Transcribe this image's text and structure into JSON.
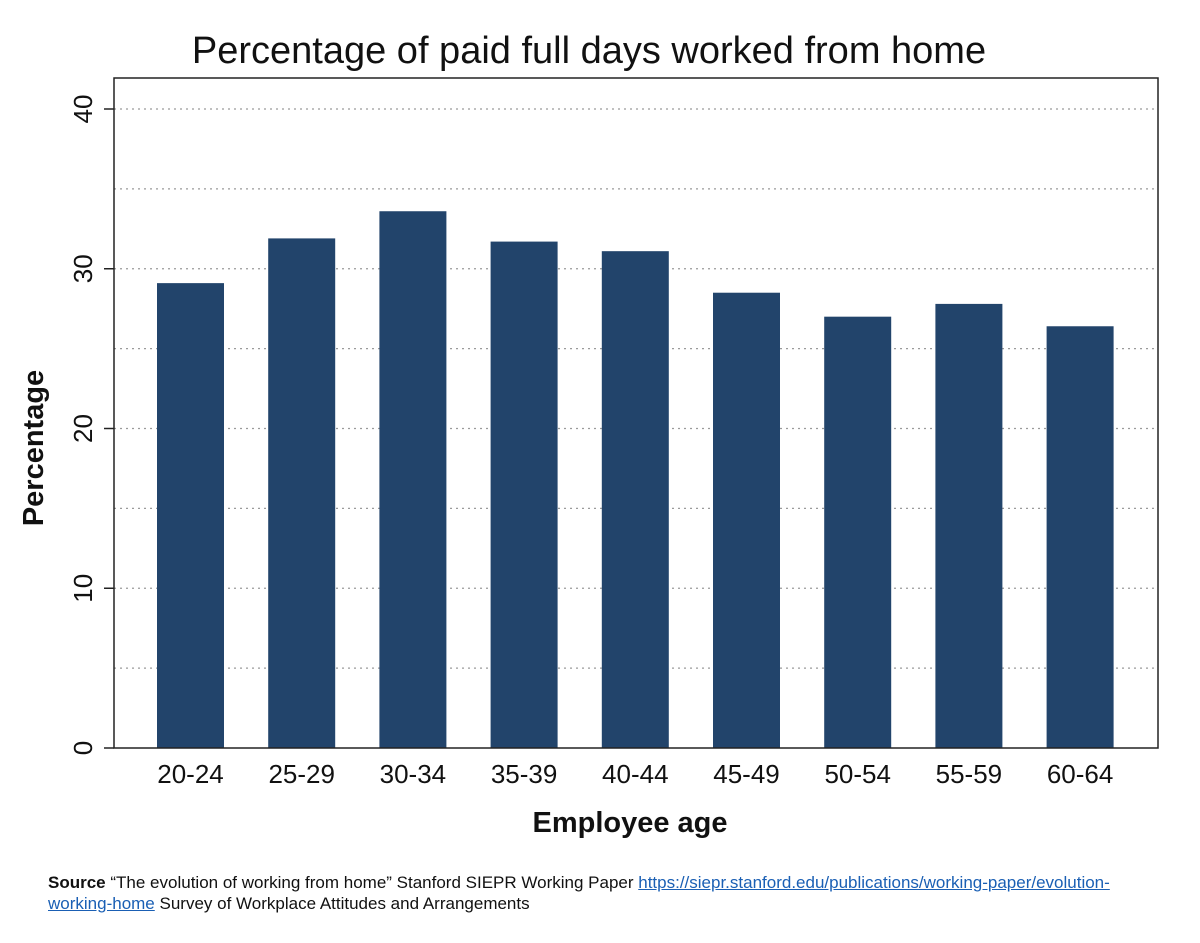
{
  "chart_data": {
    "type": "bar",
    "title": "Percentage of paid full days worked from home",
    "xlabel": "Employee age",
    "ylabel": "Percentage",
    "categories": [
      "20-24",
      "25-29",
      "30-34",
      "35-39",
      "40-44",
      "45-49",
      "50-54",
      "55-59",
      "60-64"
    ],
    "values": [
      29.1,
      31.9,
      33.6,
      31.7,
      31.1,
      28.5,
      27.0,
      27.8,
      26.4
    ],
    "ylim": [
      0,
      40
    ],
    "yticks": [
      "0",
      "10",
      "20",
      "30",
      "40"
    ],
    "grid": true,
    "legend": "none",
    "bar_color": "#22446b"
  },
  "source": {
    "label": "Source",
    "text": "“The evolution of working from home” Stanford SIEPR Working Paper",
    "link": "https://siepr.stanford.edu/publications/working-paper/evolution-working-home",
    "suffix": "Survey of Workplace Attitudes and Arrangements"
  }
}
